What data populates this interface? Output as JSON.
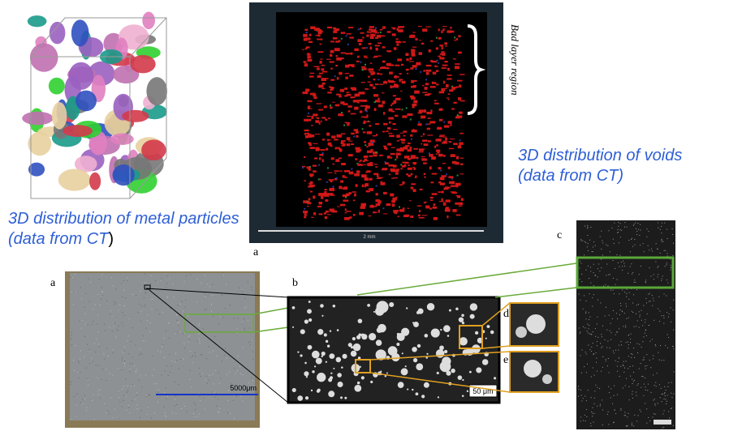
{
  "captions": {
    "metal_particles": "3D distribution of metal particles (data from CT",
    "metal_particles_close": ")",
    "voids": "3D distribution of voids (data from CT)"
  },
  "ct_image": {
    "annotation": "Bad layer region",
    "scale_bar": "2 mm",
    "panel_label": "a"
  },
  "micrographs": {
    "a": {
      "label": "a",
      "scale_bar": "5000μm"
    },
    "b": {
      "label": "b",
      "scale_bar": "50 μm"
    },
    "c": {
      "label": "c"
    },
    "d": {
      "label": "d"
    },
    "e": {
      "label": "e"
    }
  }
}
